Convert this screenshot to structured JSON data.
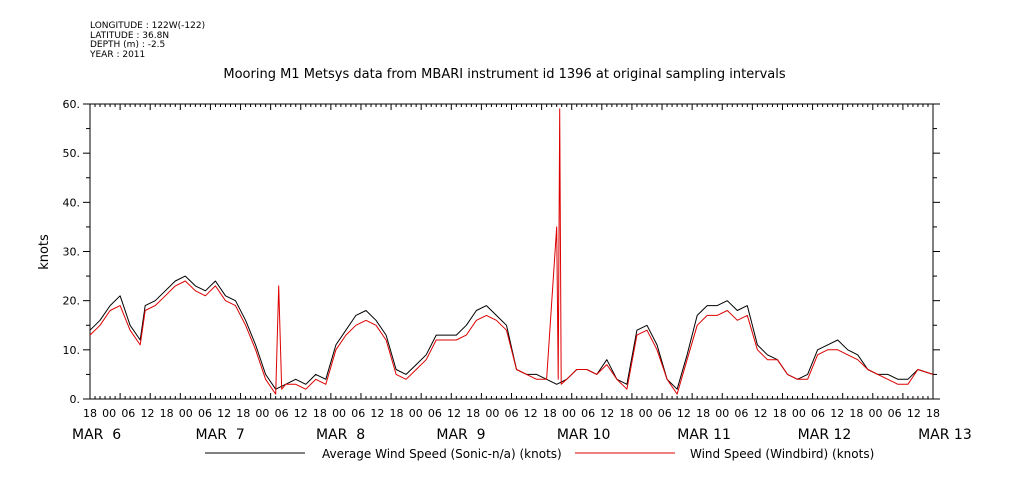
{
  "header": {
    "longitude": "LONGITUDE : 122W(-122)",
    "latitude": "LATITUDE : 36.8N",
    "depth": "DEPTH (m) : -2.5",
    "year": "YEAR : 2011"
  },
  "chart_data": {
    "type": "line",
    "title": "Mooring M1 Metsys data from MBARI instrument id 1396 at original sampling intervals",
    "ylabel": "knots",
    "xlabel": "",
    "ylim": [
      0,
      60
    ],
    "yticks": [
      "0.",
      "10.",
      "20.",
      "30.",
      "40.",
      "50.",
      "60."
    ],
    "x_range_hours": [
      0,
      168
    ],
    "x_tick_labels": [
      "18",
      "00",
      "06",
      "12",
      "18",
      "00",
      "06",
      "12",
      "18",
      "00",
      "06",
      "12",
      "18",
      "00",
      "06",
      "12",
      "18",
      "00",
      "06",
      "12",
      "18",
      "00",
      "06",
      "12",
      "18",
      "00",
      "06",
      "12",
      "18",
      "00",
      "06",
      "12",
      "18",
      "00",
      "06",
      "12",
      "18",
      "00",
      "06",
      "12",
      "18",
      "00",
      "06",
      "12",
      "18"
    ],
    "date_labels": [
      "MAR  6",
      "MAR  7",
      "MAR  8",
      "MAR  9",
      "MAR 10",
      "MAR 11",
      "MAR 12",
      "MAR 13"
    ],
    "grid": false,
    "legend_placement": "bottom",
    "series": [
      {
        "name": "Average Wind Speed (Sonic-n/a) (knots)",
        "color": "#000000",
        "points": [
          [
            0,
            14
          ],
          [
            2,
            16
          ],
          [
            4,
            19
          ],
          [
            6,
            21
          ],
          [
            8,
            15
          ],
          [
            10,
            12
          ],
          [
            11,
            19
          ],
          [
            13,
            20
          ],
          [
            15,
            22
          ],
          [
            17,
            24
          ],
          [
            19,
            25
          ],
          [
            21,
            23
          ],
          [
            23,
            22
          ],
          [
            25,
            24
          ],
          [
            27,
            21
          ],
          [
            29,
            20
          ],
          [
            31,
            16
          ],
          [
            33,
            11
          ],
          [
            35,
            5
          ],
          [
            37,
            2
          ],
          [
            39,
            3
          ],
          [
            41,
            4
          ],
          [
            43,
            3
          ],
          [
            45,
            5
          ],
          [
            47,
            4
          ],
          [
            49,
            11
          ],
          [
            51,
            14
          ],
          [
            53,
            17
          ],
          [
            55,
            18
          ],
          [
            57,
            16
          ],
          [
            59,
            13
          ],
          [
            61,
            6
          ],
          [
            63,
            5
          ],
          [
            65,
            7
          ],
          [
            67,
            9
          ],
          [
            69,
            13
          ],
          [
            71,
            13
          ],
          [
            73,
            13
          ],
          [
            75,
            15
          ],
          [
            77,
            18
          ],
          [
            79,
            19
          ],
          [
            81,
            17
          ],
          [
            83,
            15
          ],
          [
            85,
            6
          ],
          [
            87,
            5
          ],
          [
            89,
            5
          ],
          [
            91,
            4
          ],
          [
            93,
            3
          ],
          [
            95,
            4
          ],
          [
            97,
            6
          ],
          [
            99,
            6
          ],
          [
            101,
            5
          ],
          [
            103,
            8
          ],
          [
            105,
            4
          ],
          [
            107,
            3
          ],
          [
            109,
            14
          ],
          [
            111,
            15
          ],
          [
            113,
            11
          ],
          [
            115,
            4
          ],
          [
            117,
            2
          ],
          [
            119,
            9
          ],
          [
            121,
            17
          ],
          [
            123,
            19
          ],
          [
            125,
            19
          ],
          [
            127,
            20
          ],
          [
            129,
            18
          ],
          [
            131,
            19
          ],
          [
            133,
            11
          ],
          [
            135,
            9
          ],
          [
            137,
            8
          ],
          [
            139,
            5
          ],
          [
            141,
            4
          ],
          [
            143,
            5
          ],
          [
            145,
            10
          ],
          [
            147,
            11
          ],
          [
            149,
            12
          ],
          [
            151,
            10
          ],
          [
            153,
            9
          ],
          [
            155,
            6
          ],
          [
            157,
            5
          ],
          [
            159,
            5
          ],
          [
            161,
            4
          ],
          [
            163,
            4
          ],
          [
            165,
            6
          ],
          [
            168,
            5
          ]
        ]
      },
      {
        "name": "Wind Speed (Windbird) (knots)",
        "color": "#dd0000",
        "points": [
          [
            0,
            13
          ],
          [
            2,
            15
          ],
          [
            4,
            18
          ],
          [
            6,
            19
          ],
          [
            8,
            14
          ],
          [
            10,
            11
          ],
          [
            11,
            18
          ],
          [
            13,
            19
          ],
          [
            15,
            21
          ],
          [
            17,
            23
          ],
          [
            19,
            24
          ],
          [
            21,
            22
          ],
          [
            23,
            21
          ],
          [
            25,
            23
          ],
          [
            27,
            20
          ],
          [
            29,
            19
          ],
          [
            31,
            15
          ],
          [
            33,
            10
          ],
          [
            35,
            4
          ],
          [
            37,
            1
          ],
          [
            37.6,
            23
          ],
          [
            38.2,
            2
          ],
          [
            39,
            3
          ],
          [
            41,
            3
          ],
          [
            43,
            2
          ],
          [
            45,
            4
          ],
          [
            47,
            3
          ],
          [
            49,
            10
          ],
          [
            51,
            13
          ],
          [
            53,
            15
          ],
          [
            55,
            16
          ],
          [
            57,
            15
          ],
          [
            59,
            12
          ],
          [
            61,
            5
          ],
          [
            63,
            4
          ],
          [
            65,
            6
          ],
          [
            67,
            8
          ],
          [
            69,
            12
          ],
          [
            71,
            12
          ],
          [
            73,
            12
          ],
          [
            75,
            13
          ],
          [
            77,
            16
          ],
          [
            79,
            17
          ],
          [
            81,
            16
          ],
          [
            83,
            14
          ],
          [
            85,
            6
          ],
          [
            87,
            5
          ],
          [
            89,
            4
          ],
          [
            91,
            4
          ],
          [
            93,
            35
          ],
          [
            93.3,
            4
          ],
          [
            93.6,
            59
          ],
          [
            93.9,
            3
          ],
          [
            95,
            4
          ],
          [
            97,
            6
          ],
          [
            99,
            6
          ],
          [
            101,
            5
          ],
          [
            103,
            7
          ],
          [
            105,
            4
          ],
          [
            107,
            2
          ],
          [
            109,
            13
          ],
          [
            111,
            14
          ],
          [
            113,
            10
          ],
          [
            115,
            4
          ],
          [
            117,
            1
          ],
          [
            119,
            8
          ],
          [
            121,
            15
          ],
          [
            123,
            17
          ],
          [
            125,
            17
          ],
          [
            127,
            18
          ],
          [
            129,
            16
          ],
          [
            131,
            17
          ],
          [
            133,
            10
          ],
          [
            135,
            8
          ],
          [
            137,
            8
          ],
          [
            139,
            5
          ],
          [
            141,
            4
          ],
          [
            143,
            4
          ],
          [
            145,
            9
          ],
          [
            147,
            10
          ],
          [
            149,
            10
          ],
          [
            151,
            9
          ],
          [
            153,
            8
          ],
          [
            155,
            6
          ],
          [
            157,
            5
          ],
          [
            159,
            4
          ],
          [
            161,
            3
          ],
          [
            163,
            3
          ],
          [
            165,
            6
          ],
          [
            168,
            5
          ]
        ]
      }
    ]
  }
}
